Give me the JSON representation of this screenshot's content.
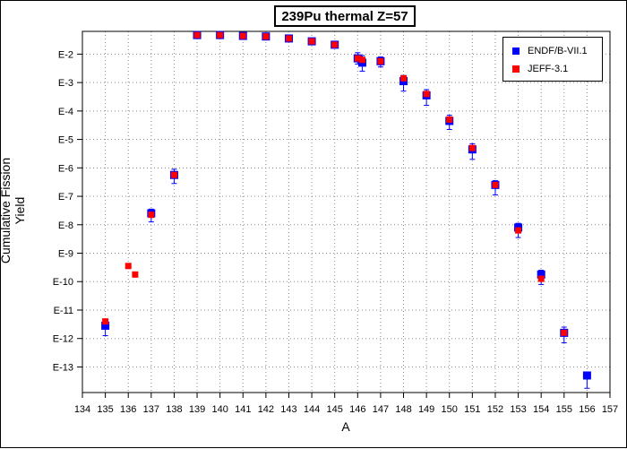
{
  "chart_data": {
    "type": "scatter",
    "title": "239Pu thermal Z=57",
    "xlabel": "A",
    "ylabel": "Cumulative Fission Yield",
    "xlim": [
      134,
      157
    ],
    "ylim": [
      -13.9,
      -1.2
    ],
    "y_scale": "log",
    "grid": true,
    "legend_position": "top-right",
    "x_ticks": [
      134,
      135,
      136,
      137,
      138,
      139,
      140,
      141,
      142,
      143,
      144,
      145,
      146,
      147,
      148,
      149,
      150,
      151,
      152,
      153,
      154,
      155,
      156,
      157
    ],
    "y_ticks": [
      {
        "value": -2,
        "label": "E-2"
      },
      {
        "value": -3,
        "label": "E-3"
      },
      {
        "value": -4,
        "label": "E-4"
      },
      {
        "value": -5,
        "label": "E-5"
      },
      {
        "value": -6,
        "label": "E-6"
      },
      {
        "value": -7,
        "label": "E-7"
      },
      {
        "value": -8,
        "label": "E-8"
      },
      {
        "value": -9,
        "label": "E-9"
      },
      {
        "value": -10,
        "label": "E-10"
      },
      {
        "value": -11,
        "label": "E-11"
      },
      {
        "value": -12,
        "label": "E-12"
      },
      {
        "value": -13,
        "label": "E-13"
      }
    ],
    "series": [
      {
        "name": "ENDF/B-VII.1",
        "color": "#0000ff",
        "points": [
          {
            "x": 135,
            "y": -11.55,
            "lo": -11.9,
            "hi": -11.35
          },
          {
            "x": 137,
            "y": -7.6,
            "lo": -7.9,
            "hi": -7.45
          },
          {
            "x": 138,
            "y": -6.25,
            "lo": -6.55,
            "hi": -6.05
          },
          {
            "x": 139,
            "y": -1.33,
            "lo": -1.4,
            "hi": -1.28
          },
          {
            "x": 140,
            "y": -1.33,
            "lo": -1.4,
            "hi": -1.28
          },
          {
            "x": 141,
            "y": -1.36,
            "lo": -1.43,
            "hi": -1.3
          },
          {
            "x": 142,
            "y": -1.38,
            "lo": -1.45,
            "hi": -1.32
          },
          {
            "x": 143,
            "y": -1.45,
            "lo": -1.52,
            "hi": -1.38
          },
          {
            "x": 144,
            "y": -1.55,
            "lo": -1.62,
            "hi": -1.48
          },
          {
            "x": 145,
            "y": -1.67,
            "lo": -1.78,
            "hi": -1.58
          },
          {
            "x": 146,
            "y": -2.15,
            "lo": -2.35,
            "hi": -1.95
          },
          {
            "x": 146.2,
            "y": -2.3,
            "lo": -2.6,
            "hi": -2.05
          },
          {
            "x": 147,
            "y": -2.25,
            "lo": -2.45,
            "hi": -2.1
          },
          {
            "x": 148,
            "y": -2.95,
            "lo": -3.3,
            "hi": -2.75
          },
          {
            "x": 149,
            "y": -3.45,
            "lo": -3.8,
            "hi": -3.25
          },
          {
            "x": 150,
            "y": -4.35,
            "lo": -4.65,
            "hi": -4.15
          },
          {
            "x": 151,
            "y": -5.35,
            "lo": -5.7,
            "hi": -5.15
          },
          {
            "x": 152,
            "y": -6.6,
            "lo": -6.95,
            "hi": -6.45
          },
          {
            "x": 153,
            "y": -8.1,
            "lo": -8.45,
            "hi": -7.95
          },
          {
            "x": 154,
            "y": -9.75,
            "lo": -10.1,
            "hi": -9.6
          },
          {
            "x": 155,
            "y": -11.8,
            "lo": -12.15,
            "hi": -11.6
          },
          {
            "x": 156,
            "y": -13.3,
            "lo": -13.75,
            "hi": -13.2
          }
        ]
      },
      {
        "name": "JEFF-3.1",
        "color": "#ff0000",
        "points": [
          {
            "x": 135,
            "y": -11.4
          },
          {
            "x": 136,
            "y": -9.45
          },
          {
            "x": 136.3,
            "y": -9.75
          },
          {
            "x": 137,
            "y": -7.65
          },
          {
            "x": 138,
            "y": -6.25
          },
          {
            "x": 139,
            "y": -1.33
          },
          {
            "x": 140,
            "y": -1.33
          },
          {
            "x": 141,
            "y": -1.36
          },
          {
            "x": 142,
            "y": -1.38
          },
          {
            "x": 143,
            "y": -1.45
          },
          {
            "x": 144,
            "y": -1.55
          },
          {
            "x": 145,
            "y": -1.67
          },
          {
            "x": 146,
            "y": -2.15
          },
          {
            "x": 146.2,
            "y": -2.2
          },
          {
            "x": 147,
            "y": -2.25
          },
          {
            "x": 148,
            "y": -2.85
          },
          {
            "x": 149,
            "y": -3.4
          },
          {
            "x": 150,
            "y": -4.3
          },
          {
            "x": 151,
            "y": -5.3
          },
          {
            "x": 152,
            "y": -6.6
          },
          {
            "x": 153,
            "y": -8.2
          },
          {
            "x": 154,
            "y": -9.9
          },
          {
            "x": 155,
            "y": -11.8
          }
        ]
      }
    ]
  }
}
